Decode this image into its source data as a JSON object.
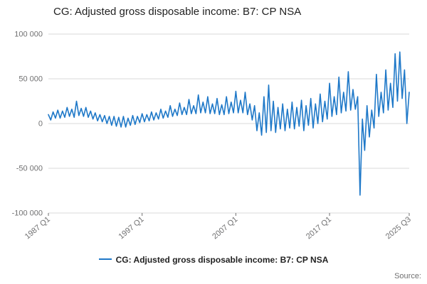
{
  "title": "CG: Adjusted gross disposable income: B7: CP NSA",
  "legend": {
    "label": "CG: Adjusted gross disposable income: B7: CP NSA"
  },
  "source_label": "Source:",
  "colors": {
    "line": "#1e78c8",
    "grid": "#d9d9d9",
    "tick_text": "#707071",
    "title_text": "#222222"
  },
  "chart_data": {
    "type": "line",
    "title": "CG: Adjusted gross disposable income: B7: CP NSA",
    "xlabel": "",
    "ylabel": "",
    "ylim": [
      -100000,
      100000
    ],
    "grid": true,
    "legend_position": "bottom",
    "frequency": "quarterly",
    "x_start": "1987 Q1",
    "x_end": "2025 Q3",
    "yticks": [
      {
        "value": 100000,
        "label": "100 000"
      },
      {
        "value": 50000,
        "label": "50 000"
      },
      {
        "value": 0,
        "label": "0"
      },
      {
        "value": -50000,
        "label": "-50 000"
      },
      {
        "value": -100000,
        "label": "-100 000"
      }
    ],
    "xticks": [
      {
        "index": 0,
        "label": "1987 Q1"
      },
      {
        "index": 40,
        "label": "1997 Q1"
      },
      {
        "index": 80,
        "label": "2007 Q1"
      },
      {
        "index": 120,
        "label": "2017 Q1"
      },
      {
        "index": 154,
        "label": "2025 Q3"
      }
    ],
    "values": [
      10000,
      4000,
      13000,
      6000,
      15000,
      6000,
      14000,
      7000,
      18000,
      8000,
      16000,
      7000,
      25000,
      9000,
      17000,
      8000,
      18000,
      7000,
      14000,
      5000,
      12000,
      3000,
      10000,
      2000,
      9000,
      0,
      8000,
      -2000,
      8000,
      -3000,
      7000,
      -4000,
      8000,
      -4000,
      6000,
      -2000,
      9000,
      -1000,
      8000,
      1000,
      11000,
      2000,
      10000,
      3000,
      13000,
      4000,
      12000,
      5000,
      16000,
      6000,
      14000,
      7000,
      20000,
      8000,
      16000,
      9000,
      23000,
      10000,
      18000,
      10000,
      27000,
      11000,
      20000,
      11000,
      32000,
      12000,
      24000,
      12000,
      30000,
      11000,
      22000,
      11000,
      28000,
      10000,
      21000,
      10000,
      30000,
      11000,
      24000,
      12000,
      36000,
      12000,
      26000,
      12000,
      35000,
      10000,
      22000,
      4000,
      20000,
      -8000,
      12000,
      -13000,
      30000,
      -10000,
      43000,
      -8000,
      25000,
      -10000,
      18000,
      -6000,
      22000,
      -8000,
      16000,
      -5000,
      24000,
      -6000,
      18000,
      -3000,
      26000,
      -8000,
      20000,
      -2000,
      28000,
      -5000,
      22000,
      0,
      33000,
      2000,
      25000,
      5000,
      45000,
      8000,
      30000,
      10000,
      52000,
      12000,
      35000,
      14000,
      58000,
      15000,
      38000,
      16000,
      30000,
      -80000,
      5000,
      -30000,
      20000,
      -15000,
      15000,
      -5000,
      55000,
      8000,
      35000,
      12000,
      60000,
      15000,
      45000,
      18000,
      78000,
      25000,
      80000,
      28000,
      60000,
      0,
      35000
    ]
  }
}
